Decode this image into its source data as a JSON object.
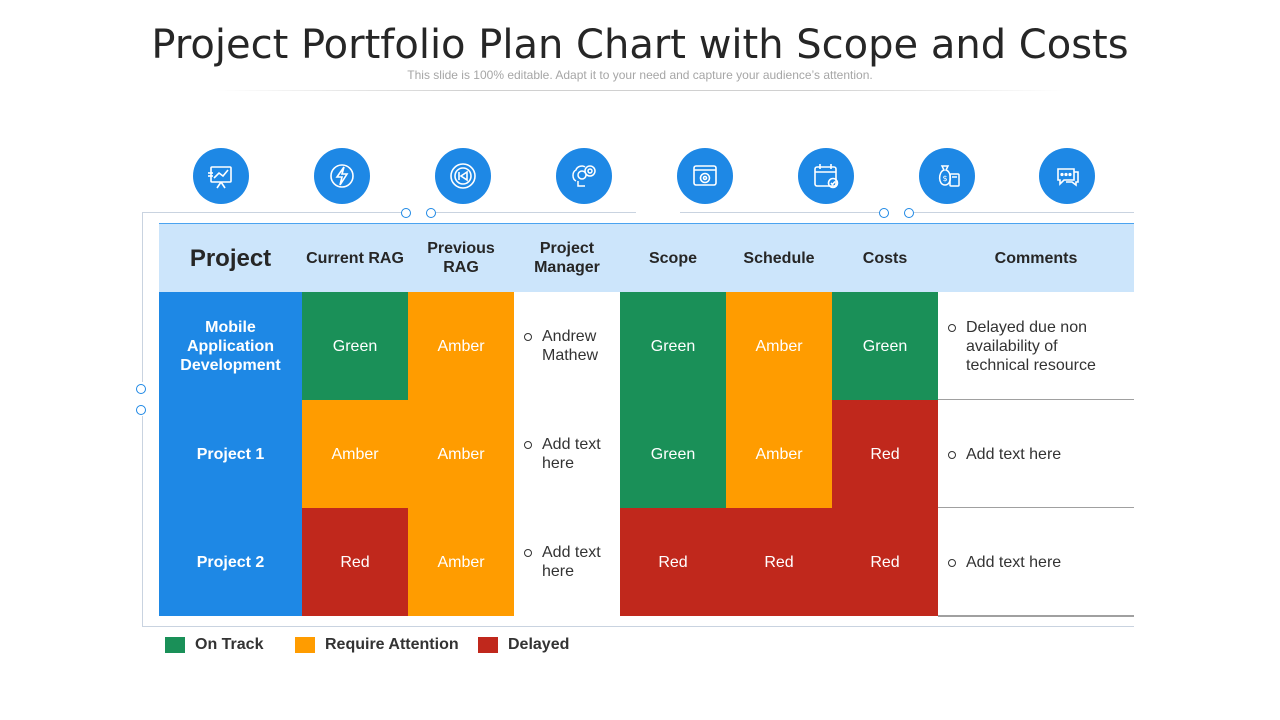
{
  "header": {
    "title": "Project Portfolio Plan Chart with Scope and Costs",
    "subtitle": "This slide is 100% editable. Adapt it to your need and capture your audience’s attention."
  },
  "icons": [
    "presentation-chart-icon",
    "lightning-icon",
    "rewind-icon",
    "brain-gears-icon",
    "target-window-icon",
    "calendar-check-icon",
    "money-bag-calculator-icon",
    "chat-bubbles-icon"
  ],
  "colors": {
    "on_track": "#1a9058",
    "require_attention": "#ff9c00",
    "delayed": "#c0281c",
    "project_column": "#1e88e5",
    "header_bg": "#cce5fb"
  },
  "table": {
    "columns": [
      "Project",
      "Current RAG",
      "Previous RAG",
      "Project Manager",
      "Scope",
      "Schedule",
      "Costs",
      "Comments"
    ],
    "rows": [
      {
        "project": "Mobile Application Development",
        "current_rag": "Green",
        "previous_rag": "Amber",
        "manager": "Andrew Mathew",
        "scope": "Green",
        "schedule": "Amber",
        "costs": "Green",
        "comments": "Delayed due non availability of technical resource"
      },
      {
        "project": "Project 1",
        "current_rag": "Amber",
        "previous_rag": "Amber",
        "manager": "Add text here",
        "scope": "Green",
        "schedule": "Amber",
        "costs": "Red",
        "comments": "Add text here"
      },
      {
        "project": "Project 2",
        "current_rag": "Red",
        "previous_rag": "Amber",
        "manager": "Add text here",
        "scope": "Red",
        "schedule": "Red",
        "costs": "Red",
        "comments": "Add text here"
      }
    ]
  },
  "legend": [
    {
      "label": "On Track",
      "color": "#1a9058"
    },
    {
      "label": "Require Attention",
      "color": "#ff9c00"
    },
    {
      "label": "Delayed",
      "color": "#c0281c"
    }
  ]
}
